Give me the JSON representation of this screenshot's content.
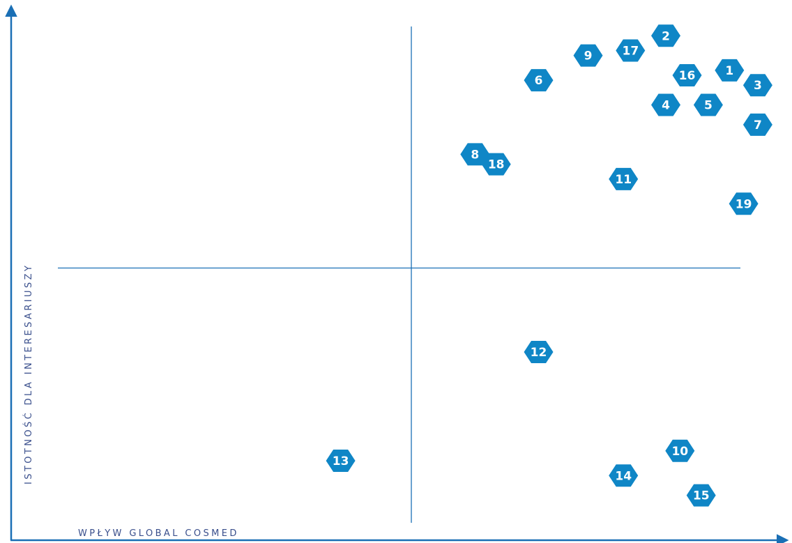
{
  "colors": {
    "axis": "#1a6fb5",
    "quadrant_lines": "#1a6fb5",
    "hexagon": "#0f86c6",
    "label_text": "#ffffff",
    "axis_title": "#3a4f8c"
  },
  "chart_data": {
    "type": "scatter",
    "title": "",
    "xlabel": "WPŁYW GLOBAL COSMED",
    "ylabel": "ISTOTNOŚĆ DLA INTERESARIUSZY",
    "xlim": [
      0,
      100
    ],
    "ylim": [
      0,
      100
    ],
    "grid": false,
    "quadrant_dividers": {
      "x": 50,
      "y": 50
    },
    "marker": "hexagon",
    "points": [
      {
        "label": "1",
        "x": 95,
        "y": 90
      },
      {
        "label": "2",
        "x": 86,
        "y": 97
      },
      {
        "label": "3",
        "x": 99,
        "y": 87
      },
      {
        "label": "4",
        "x": 86,
        "y": 83
      },
      {
        "label": "5",
        "x": 92,
        "y": 83
      },
      {
        "label": "6",
        "x": 68,
        "y": 88
      },
      {
        "label": "7",
        "x": 99,
        "y": 79
      },
      {
        "label": "8",
        "x": 59,
        "y": 73
      },
      {
        "label": "9",
        "x": 75,
        "y": 93
      },
      {
        "label": "10",
        "x": 88,
        "y": 13
      },
      {
        "label": "11",
        "x": 80,
        "y": 68
      },
      {
        "label": "12",
        "x": 68,
        "y": 33
      },
      {
        "label": "13",
        "x": 40,
        "y": 11
      },
      {
        "label": "14",
        "x": 80,
        "y": 8
      },
      {
        "label": "15",
        "x": 91,
        "y": 4
      },
      {
        "label": "16",
        "x": 89,
        "y": 89
      },
      {
        "label": "17",
        "x": 81,
        "y": 94
      },
      {
        "label": "18",
        "x": 62,
        "y": 71
      },
      {
        "label": "19",
        "x": 97,
        "y": 63
      }
    ]
  }
}
